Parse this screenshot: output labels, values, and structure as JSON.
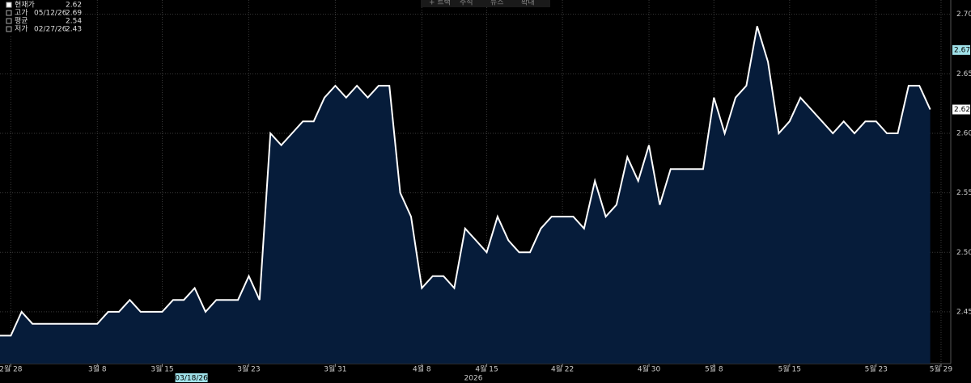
{
  "chart_data": {
    "type": "area",
    "toolbar": [
      "+ 트랙",
      "주석",
      "뉴스",
      "확대"
    ],
    "legend_stats": [
      {
        "label": "현재가",
        "value": 2.62
      },
      {
        "label": "고가",
        "date": "05/12/26",
        "value": 2.69
      },
      {
        "label": "평균",
        "value": 2.54
      },
      {
        "label": "저가",
        "date": "02/27/26",
        "value": 2.43
      }
    ],
    "values": [
      2.43,
      2.43,
      2.45,
      2.44,
      2.44,
      2.44,
      2.44,
      2.44,
      2.44,
      2.44,
      2.45,
      2.45,
      2.46,
      2.45,
      2.45,
      2.45,
      2.46,
      2.46,
      2.47,
      2.45,
      2.46,
      2.46,
      2.46,
      2.48,
      2.46,
      2.6,
      2.59,
      2.6,
      2.61,
      2.61,
      2.63,
      2.64,
      2.63,
      2.64,
      2.63,
      2.64,
      2.64,
      2.55,
      2.53,
      2.47,
      2.48,
      2.48,
      2.47,
      2.52,
      2.51,
      2.5,
      2.53,
      2.51,
      2.5,
      2.5,
      2.52,
      2.53,
      2.53,
      2.53,
      2.52,
      2.56,
      2.53,
      2.54,
      2.58,
      2.56,
      2.59,
      2.54,
      2.57,
      2.57,
      2.57,
      2.57,
      2.63,
      2.6,
      2.63,
      2.64,
      2.69,
      2.66,
      2.6,
      2.61,
      2.63,
      2.62,
      2.61,
      2.6,
      2.61,
      2.6,
      2.61,
      2.61,
      2.6,
      2.6,
      2.64,
      2.64,
      2.62
    ],
    "line_color": "#ffffff",
    "fill_color": "#061c3a",
    "xlim": [
      0,
      87.9
    ],
    "xticks": [
      {
        "value": 1,
        "label": "2월 28"
      },
      {
        "value": 9,
        "label": "3월 8"
      },
      {
        "value": 15,
        "label": "3월 15"
      },
      {
        "value": 23,
        "label": "3월 23"
      },
      {
        "value": 31,
        "label": "3월 31"
      },
      {
        "value": 39,
        "label": "4월 8"
      },
      {
        "value": 45,
        "label": "4월 15"
      },
      {
        "value": 52,
        "label": "4월 22"
      },
      {
        "value": 60,
        "label": "4월 30"
      },
      {
        "value": 66,
        "label": "5월 8"
      },
      {
        "value": 73,
        "label": "5월 15"
      },
      {
        "value": 81,
        "label": "5월 23"
      },
      {
        "value": 87,
        "label": "5월 29"
      }
    ],
    "year_label": "2026",
    "cursor": {
      "value": 17.7,
      "label": "03/18/26"
    },
    "reference_value": 2.67,
    "ylim": [
      2.4065,
      2.712
    ],
    "yticks": [
      {
        "value": 2.45,
        "label": "2.45"
      },
      {
        "value": 2.5,
        "label": "2.50"
      },
      {
        "value": 2.55,
        "label": "2.55"
      },
      {
        "value": 2.6,
        "label": "2.60"
      },
      {
        "value": 2.65,
        "label": "2.65"
      },
      {
        "value": 2.7,
        "label": "2.70"
      }
    ],
    "grid": true
  }
}
